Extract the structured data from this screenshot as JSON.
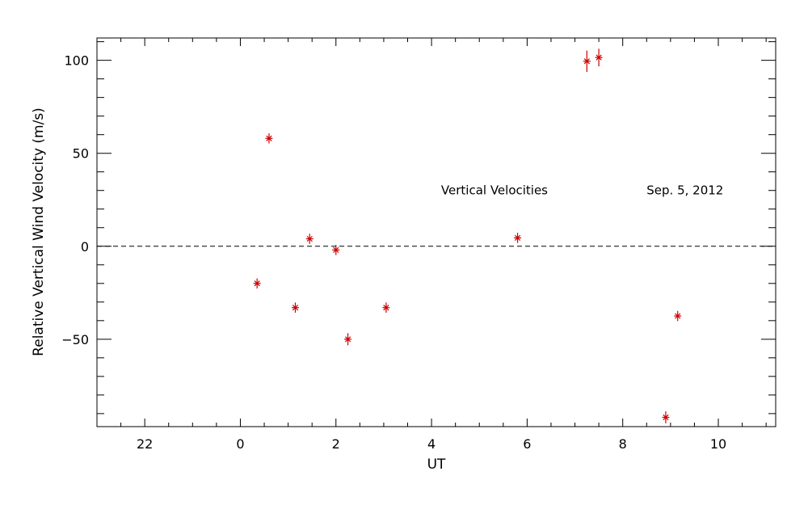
{
  "chart_data": {
    "type": "scatter",
    "xlabel": "UT",
    "ylabel": "Relative Vertical Wind Velocity (m/s)",
    "x_tick_labels": [
      "22",
      "0",
      "2",
      "4",
      "6",
      "8",
      "10"
    ],
    "x_tick_hours": [
      22,
      24,
      26,
      28,
      30,
      32,
      34
    ],
    "xlim_hours": [
      21.0,
      35.2
    ],
    "y_ticks": [
      100,
      50,
      0,
      -50
    ],
    "ylim": [
      -97,
      112
    ],
    "reference_line_y": 0,
    "marker_color": "#cc0000",
    "annotations": [
      {
        "text": "Vertical Velocities",
        "x_hours": 28.2,
        "y": 30
      },
      {
        "text": "Sep. 5, 2012",
        "x_hours": 32.5,
        "y": 30
      }
    ],
    "points": [
      {
        "x": 0.35,
        "y": -20,
        "err": 1
      },
      {
        "x": 0.6,
        "y": 58,
        "err": 1
      },
      {
        "x": 1.15,
        "y": -33,
        "err": 1
      },
      {
        "x": 1.45,
        "y": 4,
        "err": 1
      },
      {
        "x": 2.0,
        "y": -2,
        "err": 1
      },
      {
        "x": 2.25,
        "y": -50,
        "err": 1.5
      },
      {
        "x": 3.05,
        "y": -33,
        "err": 1
      },
      {
        "x": 5.8,
        "y": 4.5,
        "err": 1
      },
      {
        "x": 7.25,
        "y": 99.5,
        "err": 4
      },
      {
        "x": 7.5,
        "y": 101.5,
        "err": 3
      },
      {
        "x": 8.9,
        "y": -92,
        "err": 1.5
      },
      {
        "x": 9.15,
        "y": -37.5,
        "err": 1
      }
    ]
  }
}
